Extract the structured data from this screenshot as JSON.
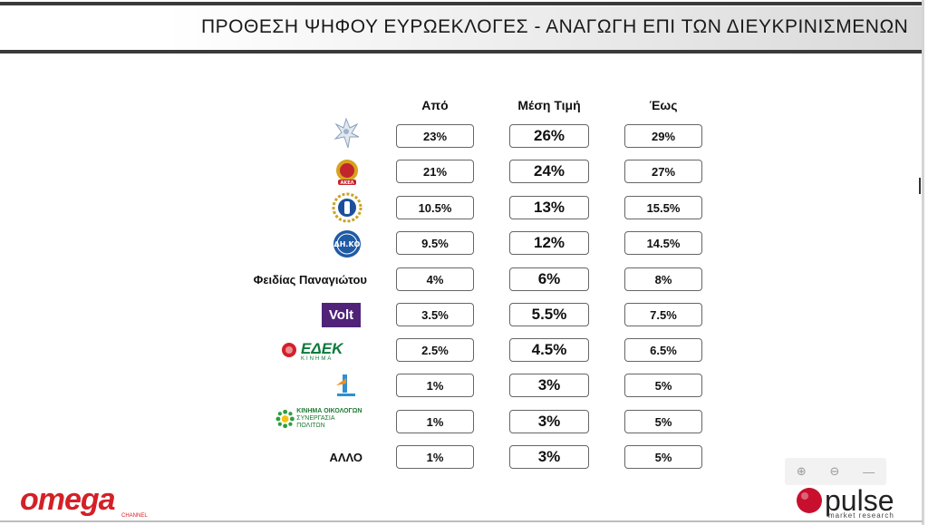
{
  "title": "ΠΡΟΘΕΣΗ ΨΗΦΟΥ ΕΥΡΩΕΚΛΟΓΕΣ - ΑΝΑΓΩΓΗ ΕΠΙ ΤΩΝ ΔΙΕΥΚΡΙΝΙΣΜΕΝΩΝ",
  "headers": {
    "from": "Από",
    "mid": "Μέση Τιμή",
    "to": "Έως"
  },
  "rows": [
    {
      "party": "disy-logo",
      "label": "",
      "from": "23%",
      "mid": "26%",
      "to": "29%"
    },
    {
      "party": "akel-logo",
      "label": "",
      "from": "21%",
      "mid": "24%",
      "to": "27%"
    },
    {
      "party": "elam-logo",
      "label": "",
      "from": "10.5%",
      "mid": "13%",
      "to": "15.5%"
    },
    {
      "party": "diko-logo",
      "label": "",
      "from": "9.5%",
      "mid": "12%",
      "to": "14.5%"
    },
    {
      "party": "fidias",
      "label": "Φειδίας Παναγιώτου",
      "from": "4%",
      "mid": "6%",
      "to": "8%"
    },
    {
      "party": "volt-logo",
      "label": "",
      "from": "3.5%",
      "mid": "5.5%",
      "to": "7.5%"
    },
    {
      "party": "edek-logo",
      "label": "",
      "from": "2.5%",
      "mid": "4.5%",
      "to": "6.5%"
    },
    {
      "party": "alma-logo",
      "label": "",
      "from": "1%",
      "mid": "3%",
      "to": "5%"
    },
    {
      "party": "greens-logo",
      "label": "",
      "from": "1%",
      "mid": "3%",
      "to": "5%"
    },
    {
      "party": "other",
      "label": "ΑΛΛΟ",
      "from": "1%",
      "mid": "3%",
      "to": "5%"
    }
  ],
  "logos": {
    "volt": "Volt",
    "edek_main": "ΕΔΕΚ",
    "edek_sub": "ΚΙΝΗΜΑ",
    "akel": "ΑΚΕΛ",
    "diko": "ΔΗ.ΚΟ",
    "greens_1": "ΚΙΝΗΜΑ ΟΙΚΟΛΟΓΩΝ",
    "greens_2": "ΣΥΝΕΡΓΑΣΙΑ ΠΟΛΙΤΩΝ",
    "omega": "omega",
    "omega_sub": "CHANNEL",
    "pulse": "pulse",
    "pulse_sub": "market research"
  },
  "colors": {
    "volt": "#502379",
    "akel": "#c0262c",
    "omega": "#d42027",
    "pulse": "#c8102e",
    "elam": "#1b4f9c",
    "diko": "#1f5aa6"
  },
  "zoom": {
    "in": "⊕",
    "out": "⊖",
    "reset": "—"
  }
}
